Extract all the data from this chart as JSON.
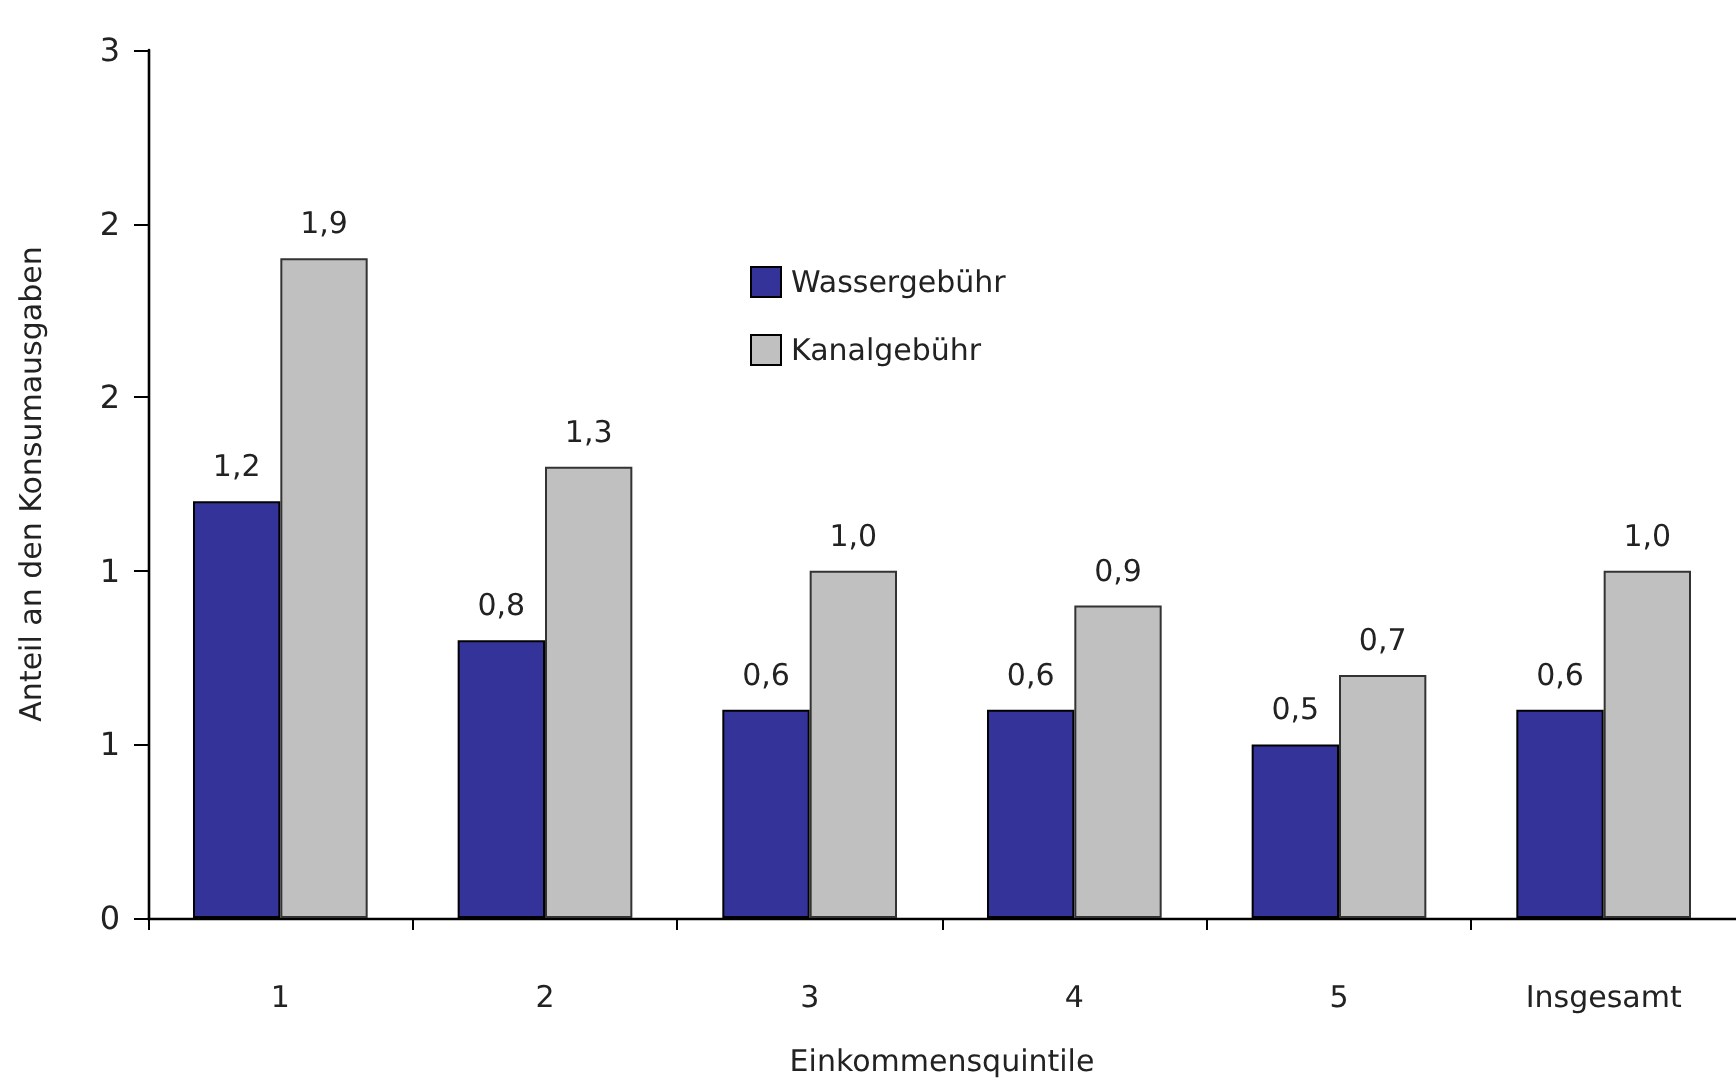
{
  "chart_data": {
    "type": "bar",
    "xlabel": "Einkommensquintile",
    "ylabel": "Anteil an den Konsumausgaben",
    "categories": [
      "1",
      "2",
      "3",
      "4",
      "5",
      "Insgesamt"
    ],
    "series": [
      {
        "name": "Wassergebühr",
        "color": "#333399",
        "values": [
          1.2,
          0.8,
          0.6,
          0.6,
          0.5,
          0.6
        ],
        "value_labels": [
          "1,2",
          "0,8",
          "0,6",
          "0,6",
          "0,5",
          "0,6"
        ]
      },
      {
        "name": "Kanalgebühr",
        "color": "#c0c0c0",
        "values": [
          1.9,
          1.3,
          1.0,
          0.9,
          0.7,
          1.0
        ],
        "value_labels": [
          "1,9",
          "1,3",
          "1,0",
          "0,9",
          "0,7",
          "1,0"
        ]
      }
    ],
    "ylim": [
      0,
      2.5
    ],
    "yticks": [
      0,
      {
        "value": 0.5,
        "label": "1"
      },
      {
        "value": 1,
        "label": "1"
      },
      {
        "value": 1.5,
        "label": "2"
      },
      {
        "value": 2,
        "label": "2"
      },
      {
        "value": 2.5,
        "label": "3"
      }
    ],
    "grid": false,
    "legend": "top"
  }
}
